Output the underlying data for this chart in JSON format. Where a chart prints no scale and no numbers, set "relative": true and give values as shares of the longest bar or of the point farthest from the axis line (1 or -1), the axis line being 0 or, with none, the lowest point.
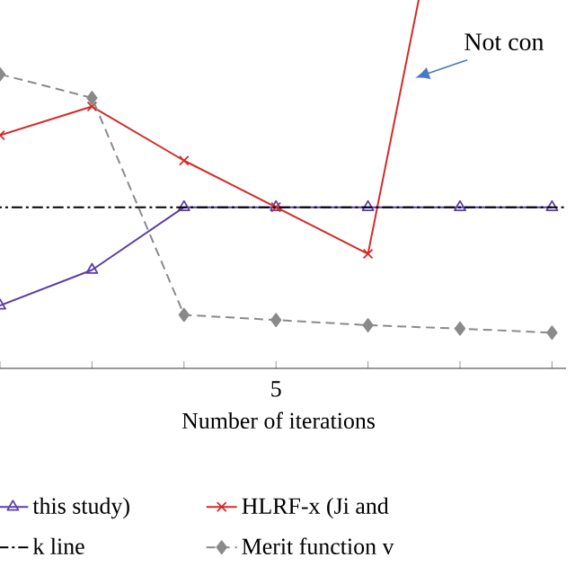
{
  "chart_data": {
    "type": "line",
    "relative": true,
    "xlabel": "Number of iterations",
    "categories": [
      null,
      null,
      null,
      null,
      null,
      null,
      null
    ],
    "series": [
      {
        "name": "this study)",
        "color": "#5b3fa8",
        "marker": "triangle",
        "line_style": "solid",
        "values": [
          0.109,
          0.171,
          0.28,
          0.28,
          0.28,
          0.28,
          0.28
        ]
      },
      {
        "name": "HLRF-x (Ji and",
        "color": "#d42a2a",
        "marker": "cross",
        "line_style": "solid",
        "values": [
          0.405,
          0.455,
          0.361,
          0.28,
          0.199,
          1.0,
          null
        ]
      },
      {
        "name": "Merit function v",
        "color": "#8a8a8a",
        "marker": "diamond",
        "line_style": "dashed",
        "values": [
          0.511,
          0.47,
          0.093,
          0.084,
          0.075,
          0.069,
          0.062
        ]
      }
    ],
    "ref_lines": [
      {
        "axis": "y",
        "value": 0.28,
        "label": "k line",
        "color": "#000000",
        "line_style": "dashdot"
      }
    ],
    "annotations": [
      "Not con",
      "5"
    ],
    "legend": "bottom"
  }
}
